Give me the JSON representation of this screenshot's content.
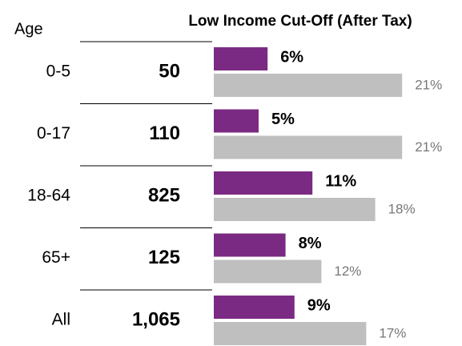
{
  "chart_data": {
    "type": "bar",
    "title": "Low Income Cut-Off (After Tax)",
    "category_header": "Age",
    "categories": [
      "0-5",
      "0-17",
      "18-64",
      "65+",
      "All"
    ],
    "counts": {
      "values": [
        50,
        110,
        825,
        125,
        1065
      ],
      "value_labels": [
        "50",
        "110",
        "825",
        "125",
        "1,065"
      ]
    },
    "series": [
      {
        "color": "#7b2a83",
        "values": [
          6,
          5,
          11,
          8,
          9
        ],
        "value_labels": [
          "6%",
          "5%",
          "11%",
          "8%",
          "9%"
        ]
      },
      {
        "color": "#bfbfbf",
        "values": [
          21,
          21,
          18,
          12,
          17
        ],
        "value_labels": [
          "21%",
          "21%",
          "18%",
          "12%",
          "17%"
        ]
      }
    ]
  }
}
